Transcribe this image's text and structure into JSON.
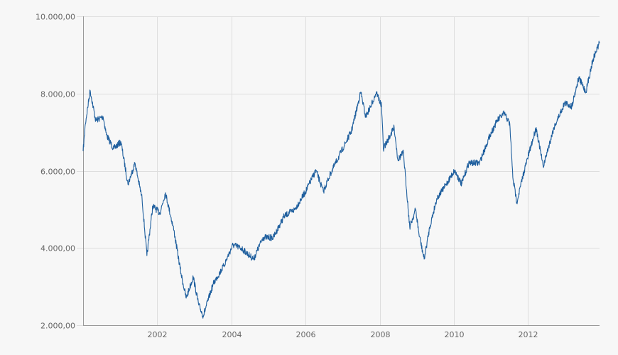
{
  "chart_data": {
    "type": "line",
    "title": "",
    "xlabel": "",
    "ylabel": "",
    "xlim": [
      2000.0,
      2013.93
    ],
    "ylim": [
      2000,
      10000
    ],
    "grid": true,
    "line_color": "#1f5f9e",
    "x_ticks": [
      2002,
      2004,
      2006,
      2008,
      2010,
      2012
    ],
    "x_tick_labels": [
      "2002",
      "2004",
      "2006",
      "2008",
      "2010",
      "2012"
    ],
    "y_ticks": [
      2000,
      4000,
      6000,
      8000,
      10000
    ],
    "y_tick_labels": [
      "2.000,00",
      "4.000,00",
      "6.000,00",
      "8.000,00",
      "10.000,00"
    ],
    "series": [
      {
        "x": [
          2000.0,
          2000.06,
          2000.19,
          2000.34,
          2000.54,
          2000.63,
          2000.82,
          2001.02,
          2001.21,
          2001.4,
          2001.59,
          2001.72,
          2001.88,
          2002.07,
          2002.22,
          2002.45,
          2002.64,
          2002.78,
          2002.97,
          2003.12,
          2003.24,
          2003.51,
          2003.79,
          2004.04,
          2004.27,
          2004.6,
          2004.85,
          2005.13,
          2005.42,
          2005.71,
          2006.0,
          2006.28,
          2006.48,
          2006.67,
          2006.95,
          2007.24,
          2007.49,
          2007.62,
          2007.76,
          2007.91,
          2008.05,
          2008.1,
          2008.39,
          2008.49,
          2008.64,
          2008.81,
          2008.97,
          2009.06,
          2009.2,
          2009.35,
          2009.54,
          2009.73,
          2010.02,
          2010.21,
          2010.4,
          2010.69,
          2010.98,
          2011.17,
          2011.36,
          2011.51,
          2011.59,
          2011.7,
          2011.9,
          2012.22,
          2012.41,
          2012.7,
          2012.99,
          2013.18,
          2013.37,
          2013.56,
          2013.75,
          2013.93
        ],
        "y": [
          6510,
          7210,
          8080,
          7300,
          7400,
          6930,
          6570,
          6750,
          5650,
          6200,
          5280,
          3800,
          5090,
          4900,
          5430,
          4450,
          3340,
          2700,
          3250,
          2520,
          2240,
          3070,
          3530,
          4080,
          3990,
          3710,
          4270,
          4270,
          4820,
          5000,
          5460,
          6010,
          5460,
          5920,
          6470,
          7030,
          8040,
          7400,
          7670,
          8040,
          7670,
          6570,
          7120,
          6290,
          6470,
          4540,
          5000,
          4360,
          3710,
          4540,
          5280,
          5550,
          6010,
          5650,
          6200,
          6200,
          6930,
          7300,
          7490,
          7210,
          5830,
          5190,
          6010,
          7120,
          6110,
          7120,
          7760,
          7670,
          8410,
          8040,
          8870,
          9330
        ]
      }
    ]
  }
}
